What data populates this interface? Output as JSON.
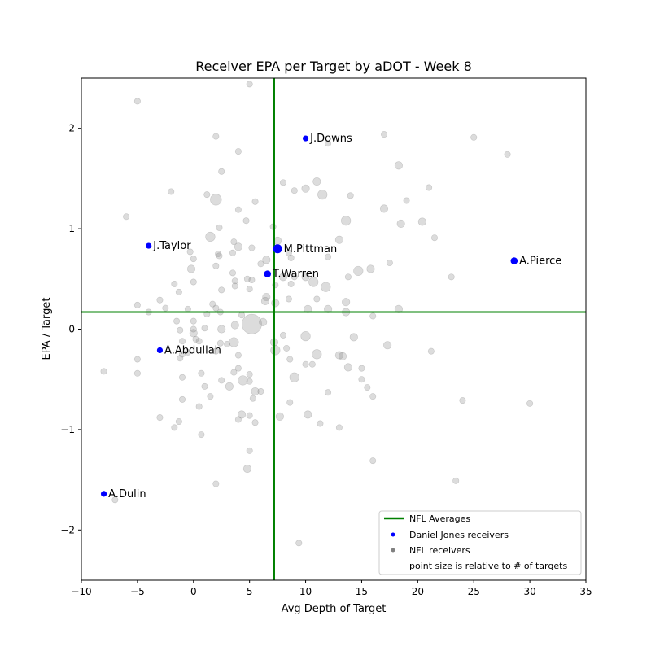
{
  "chart_data": {
    "type": "scatter",
    "title": "Receiver EPA per Target by aDOT - Week 8",
    "xlabel": "Avg Depth of Target",
    "ylabel": "EPA / Target",
    "xlim": [
      -10,
      35
    ],
    "ylim": [
      -2.5,
      2.5
    ],
    "xticks": [
      -10,
      -5,
      0,
      5,
      10,
      15,
      20,
      25,
      30,
      35
    ],
    "yticks": [
      -2,
      -1,
      0,
      1,
      2
    ],
    "averages": {
      "x": 7.2,
      "y": 0.17
    },
    "colors": {
      "average_lines": "#008000",
      "highlight": "#0000ff",
      "nfl": "#808080"
    },
    "legend": {
      "position": "lower-right",
      "entries": [
        "NFL Averages",
        "Daniel Jones receivers",
        "NFL receivers",
        "point size is relative to # of targets"
      ]
    },
    "highlighted_series": {
      "name": "Daniel Jones receivers",
      "points": [
        {
          "label": "J.Downs",
          "x": 10.0,
          "y": 1.9,
          "targets": 3
        },
        {
          "label": "J.Taylor",
          "x": -4.0,
          "y": 0.83,
          "targets": 3
        },
        {
          "label": "M.Pittman",
          "x": 7.5,
          "y": 0.8,
          "targets": 7
        },
        {
          "label": "T.Warren",
          "x": 6.6,
          "y": 0.55,
          "targets": 4
        },
        {
          "label": "A.Pierce",
          "x": 28.6,
          "y": 0.68,
          "targets": 4
        },
        {
          "label": "A.Abdullah",
          "x": -3.0,
          "y": -0.21,
          "targets": 3
        },
        {
          "label": "A.Dulin",
          "x": -8.0,
          "y": -1.64,
          "targets": 3
        }
      ]
    },
    "background_series": {
      "name": "NFL receivers",
      "points": [
        {
          "x": 5.0,
          "y": 2.44,
          "targets": 2
        },
        {
          "x": -5.0,
          "y": 2.27,
          "targets": 2
        },
        {
          "x": 17.0,
          "y": 1.94,
          "targets": 2
        },
        {
          "x": 2.0,
          "y": 1.92,
          "targets": 2
        },
        {
          "x": 25.0,
          "y": 1.91,
          "targets": 2
        },
        {
          "x": 12.0,
          "y": 1.85,
          "targets": 2
        },
        {
          "x": 4.0,
          "y": 1.77,
          "targets": 2
        },
        {
          "x": 28.0,
          "y": 1.74,
          "targets": 2
        },
        {
          "x": 18.3,
          "y": 1.63,
          "targets": 3
        },
        {
          "x": 2.5,
          "y": 1.57,
          "targets": 2
        },
        {
          "x": 11.0,
          "y": 1.47,
          "targets": 3
        },
        {
          "x": 8.0,
          "y": 1.46,
          "targets": 2
        },
        {
          "x": 21.0,
          "y": 1.41,
          "targets": 2
        },
        {
          "x": 10.0,
          "y": 1.4,
          "targets": 3
        },
        {
          "x": 9.0,
          "y": 1.38,
          "targets": 2
        },
        {
          "x": -2.0,
          "y": 1.37,
          "targets": 2
        },
        {
          "x": 11.5,
          "y": 1.34,
          "targets": 4
        },
        {
          "x": 1.2,
          "y": 1.34,
          "targets": 2
        },
        {
          "x": 14.0,
          "y": 1.33,
          "targets": 2
        },
        {
          "x": 2.0,
          "y": 1.29,
          "targets": 5
        },
        {
          "x": 19.0,
          "y": 1.28,
          "targets": 2
        },
        {
          "x": 5.5,
          "y": 1.27,
          "targets": 2
        },
        {
          "x": 4.0,
          "y": 1.19,
          "targets": 2
        },
        {
          "x": 17.0,
          "y": 1.2,
          "targets": 3
        },
        {
          "x": -6.0,
          "y": 1.12,
          "targets": 2
        },
        {
          "x": 4.7,
          "y": 1.08,
          "targets": 2
        },
        {
          "x": 20.4,
          "y": 1.07,
          "targets": 3
        },
        {
          "x": 13.6,
          "y": 1.08,
          "targets": 4
        },
        {
          "x": 18.5,
          "y": 1.05,
          "targets": 3
        },
        {
          "x": 7.1,
          "y": 1.02,
          "targets": 2
        },
        {
          "x": 2.3,
          "y": 1.01,
          "targets": 2
        },
        {
          "x": 21.5,
          "y": 0.91,
          "targets": 2
        },
        {
          "x": 1.5,
          "y": 0.92,
          "targets": 4
        },
        {
          "x": 3.6,
          "y": 0.87,
          "targets": 2
        },
        {
          "x": 13.0,
          "y": 0.89,
          "targets": 3
        },
        {
          "x": 7.5,
          "y": 0.88,
          "targets": 3
        },
        {
          "x": 4.0,
          "y": 0.82,
          "targets": 3
        },
        {
          "x": 5.2,
          "y": 0.81,
          "targets": 2
        },
        {
          "x": 8.5,
          "y": 0.76,
          "targets": 2
        },
        {
          "x": -0.3,
          "y": 0.77,
          "targets": 2
        },
        {
          "x": 2.2,
          "y": 0.75,
          "targets": 2
        },
        {
          "x": 3.5,
          "y": 0.76,
          "targets": 2
        },
        {
          "x": 2.3,
          "y": 0.73,
          "targets": 2
        },
        {
          "x": 8.7,
          "y": 0.71,
          "targets": 2
        },
        {
          "x": 6.5,
          "y": 0.69,
          "targets": 3
        },
        {
          "x": 0.0,
          "y": 0.7,
          "targets": 2
        },
        {
          "x": 12.0,
          "y": 0.72,
          "targets": 2
        },
        {
          "x": 17.5,
          "y": 0.66,
          "targets": 2
        },
        {
          "x": 6.0,
          "y": 0.65,
          "targets": 2
        },
        {
          "x": 2.0,
          "y": 0.63,
          "targets": 2
        },
        {
          "x": 15.8,
          "y": 0.6,
          "targets": 3
        },
        {
          "x": -0.2,
          "y": 0.6,
          "targets": 3
        },
        {
          "x": 14.7,
          "y": 0.58,
          "targets": 4
        },
        {
          "x": 3.5,
          "y": 0.56,
          "targets": 2
        },
        {
          "x": 23.0,
          "y": 0.52,
          "targets": 2
        },
        {
          "x": 8.0,
          "y": 0.52,
          "targets": 3
        },
        {
          "x": 10.0,
          "y": 0.52,
          "targets": 3
        },
        {
          "x": 9.0,
          "y": 0.52,
          "targets": 2
        },
        {
          "x": 10.7,
          "y": 0.47,
          "targets": 4
        },
        {
          "x": 4.8,
          "y": 0.5,
          "targets": 2
        },
        {
          "x": 13.8,
          "y": 0.52,
          "targets": 2
        },
        {
          "x": 5.2,
          "y": 0.49,
          "targets": 2
        },
        {
          "x": 3.7,
          "y": 0.48,
          "targets": 2
        },
        {
          "x": 0.0,
          "y": 0.47,
          "targets": 2
        },
        {
          "x": -1.7,
          "y": 0.45,
          "targets": 2
        },
        {
          "x": 8.7,
          "y": 0.45,
          "targets": 2
        },
        {
          "x": 7.3,
          "y": 0.44,
          "targets": 2
        },
        {
          "x": 3.7,
          "y": 0.43,
          "targets": 2
        },
        {
          "x": 11.8,
          "y": 0.42,
          "targets": 4
        },
        {
          "x": 5.0,
          "y": 0.4,
          "targets": 2
        },
        {
          "x": 2.5,
          "y": 0.39,
          "targets": 2
        },
        {
          "x": -1.3,
          "y": 0.37,
          "targets": 2
        },
        {
          "x": 6.5,
          "y": 0.32,
          "targets": 3
        },
        {
          "x": 8.5,
          "y": 0.3,
          "targets": 2
        },
        {
          "x": -3.0,
          "y": 0.29,
          "targets": 2
        },
        {
          "x": 11.0,
          "y": 0.3,
          "targets": 2
        },
        {
          "x": 6.4,
          "y": 0.28,
          "targets": 3
        },
        {
          "x": 13.6,
          "y": 0.27,
          "targets": 3
        },
        {
          "x": 1.7,
          "y": 0.25,
          "targets": 2
        },
        {
          "x": 7.3,
          "y": 0.26,
          "targets": 3
        },
        {
          "x": -5.0,
          "y": 0.24,
          "targets": 2
        },
        {
          "x": -2.5,
          "y": 0.21,
          "targets": 2
        },
        {
          "x": 2.0,
          "y": 0.21,
          "targets": 2
        },
        {
          "x": 10.2,
          "y": 0.2,
          "targets": 3
        },
        {
          "x": 18.3,
          "y": 0.2,
          "targets": 3
        },
        {
          "x": 12.0,
          "y": 0.2,
          "targets": 3
        },
        {
          "x": -0.5,
          "y": 0.2,
          "targets": 2
        },
        {
          "x": 13.6,
          "y": 0.17,
          "targets": 3
        },
        {
          "x": -4.0,
          "y": 0.17,
          "targets": 2
        },
        {
          "x": 2.4,
          "y": 0.17,
          "targets": 2
        },
        {
          "x": 1.2,
          "y": 0.15,
          "targets": 2
        },
        {
          "x": 4.3,
          "y": 0.14,
          "targets": 2
        },
        {
          "x": 16.0,
          "y": 0.13,
          "targets": 2
        },
        {
          "x": -1.5,
          "y": 0.08,
          "targets": 2
        },
        {
          "x": 0.0,
          "y": 0.08,
          "targets": 2
        },
        {
          "x": 6.2,
          "y": 0.07,
          "targets": 3
        },
        {
          "x": 5.2,
          "y": 0.05,
          "targets": 10
        },
        {
          "x": 3.7,
          "y": 0.04,
          "targets": 3
        },
        {
          "x": 2.5,
          "y": 0.0,
          "targets": 3
        },
        {
          "x": 0.0,
          "y": 0.0,
          "targets": 2
        },
        {
          "x": -1.2,
          "y": -0.01,
          "targets": 2
        },
        {
          "x": 1.0,
          "y": 0.01,
          "targets": 2
        },
        {
          "x": 0.0,
          "y": -0.04,
          "targets": 3
        },
        {
          "x": 8.0,
          "y": -0.06,
          "targets": 2
        },
        {
          "x": 10.0,
          "y": -0.07,
          "targets": 4
        },
        {
          "x": 14.3,
          "y": -0.08,
          "targets": 3
        },
        {
          "x": 0.2,
          "y": -0.1,
          "targets": 2
        },
        {
          "x": -1.0,
          "y": -0.12,
          "targets": 2
        },
        {
          "x": 3.6,
          "y": -0.13,
          "targets": 4
        },
        {
          "x": 0.5,
          "y": -0.12,
          "targets": 2
        },
        {
          "x": 2.4,
          "y": -0.14,
          "targets": 2
        },
        {
          "x": 7.2,
          "y": -0.13,
          "targets": 3
        },
        {
          "x": 17.3,
          "y": -0.16,
          "targets": 3
        },
        {
          "x": 3.0,
          "y": -0.15,
          "targets": 2
        },
        {
          "x": 8.3,
          "y": -0.19,
          "targets": 2
        },
        {
          "x": 21.2,
          "y": -0.22,
          "targets": 2
        },
        {
          "x": 7.3,
          "y": -0.21,
          "targets": 4
        },
        {
          "x": 2.0,
          "y": -0.22,
          "targets": 2
        },
        {
          "x": -0.5,
          "y": -0.23,
          "targets": 2
        },
        {
          "x": 11.0,
          "y": -0.25,
          "targets": 4
        },
        {
          "x": 4.0,
          "y": -0.26,
          "targets": 2
        },
        {
          "x": -1.0,
          "y": -0.25,
          "targets": 2
        },
        {
          "x": 13.0,
          "y": -0.26,
          "targets": 3
        },
        {
          "x": 13.3,
          "y": -0.27,
          "targets": 3
        },
        {
          "x": -1.2,
          "y": -0.29,
          "targets": 2
        },
        {
          "x": 8.6,
          "y": -0.3,
          "targets": 2
        },
        {
          "x": -5.0,
          "y": -0.3,
          "targets": 2
        },
        {
          "x": 10.6,
          "y": -0.35,
          "targets": 2
        },
        {
          "x": 10.0,
          "y": -0.35,
          "targets": 2
        },
        {
          "x": 13.8,
          "y": -0.38,
          "targets": 3
        },
        {
          "x": 15.0,
          "y": -0.39,
          "targets": 2
        },
        {
          "x": 4.0,
          "y": -0.39,
          "targets": 2
        },
        {
          "x": 3.6,
          "y": -0.43,
          "targets": 2
        },
        {
          "x": -8.0,
          "y": -0.42,
          "targets": 2
        },
        {
          "x": 0.7,
          "y": -0.44,
          "targets": 2
        },
        {
          "x": 5.0,
          "y": -0.45,
          "targets": 2
        },
        {
          "x": -5.0,
          "y": -0.44,
          "targets": 2
        },
        {
          "x": 9.0,
          "y": -0.48,
          "targets": 4
        },
        {
          "x": -1.0,
          "y": -0.48,
          "targets": 2
        },
        {
          "x": 4.4,
          "y": -0.51,
          "targets": 4
        },
        {
          "x": 2.5,
          "y": -0.51,
          "targets": 2
        },
        {
          "x": 15.0,
          "y": -0.5,
          "targets": 2
        },
        {
          "x": 5.0,
          "y": -0.52,
          "targets": 2
        },
        {
          "x": 1.0,
          "y": -0.57,
          "targets": 2
        },
        {
          "x": 3.2,
          "y": -0.57,
          "targets": 3
        },
        {
          "x": 15.5,
          "y": -0.58,
          "targets": 2
        },
        {
          "x": 5.5,
          "y": -0.62,
          "targets": 3
        },
        {
          "x": 6.0,
          "y": -0.62,
          "targets": 2
        },
        {
          "x": 12.0,
          "y": -0.63,
          "targets": 2
        },
        {
          "x": 1.5,
          "y": -0.67,
          "targets": 2
        },
        {
          "x": 16.0,
          "y": -0.67,
          "targets": 2
        },
        {
          "x": 5.3,
          "y": -0.69,
          "targets": 2
        },
        {
          "x": -1.0,
          "y": -0.7,
          "targets": 2
        },
        {
          "x": 24.0,
          "y": -0.71,
          "targets": 2
        },
        {
          "x": 8.6,
          "y": -0.73,
          "targets": 2
        },
        {
          "x": 30.0,
          "y": -0.74,
          "targets": 2
        },
        {
          "x": 0.5,
          "y": -0.77,
          "targets": 2
        },
        {
          "x": 10.2,
          "y": -0.85,
          "targets": 3
        },
        {
          "x": 4.3,
          "y": -0.85,
          "targets": 3
        },
        {
          "x": 5.0,
          "y": -0.86,
          "targets": 2
        },
        {
          "x": 7.7,
          "y": -0.87,
          "targets": 3
        },
        {
          "x": -3.0,
          "y": -0.88,
          "targets": 2
        },
        {
          "x": 4.0,
          "y": -0.9,
          "targets": 2
        },
        {
          "x": -1.3,
          "y": -0.92,
          "targets": 2
        },
        {
          "x": 5.5,
          "y": -0.93,
          "targets": 2
        },
        {
          "x": 11.3,
          "y": -0.94,
          "targets": 2
        },
        {
          "x": 13.0,
          "y": -0.98,
          "targets": 2
        },
        {
          "x": -1.7,
          "y": -0.98,
          "targets": 2
        },
        {
          "x": 0.7,
          "y": -1.05,
          "targets": 2
        },
        {
          "x": 5.0,
          "y": -1.21,
          "targets": 2
        },
        {
          "x": 16.0,
          "y": -1.31,
          "targets": 2
        },
        {
          "x": 4.8,
          "y": -1.39,
          "targets": 3
        },
        {
          "x": 23.4,
          "y": -1.51,
          "targets": 2
        },
        {
          "x": 2.0,
          "y": -1.54,
          "targets": 2
        },
        {
          "x": -7.0,
          "y": -1.7,
          "targets": 2
        },
        {
          "x": 9.4,
          "y": -2.13,
          "targets": 2
        }
      ]
    }
  }
}
